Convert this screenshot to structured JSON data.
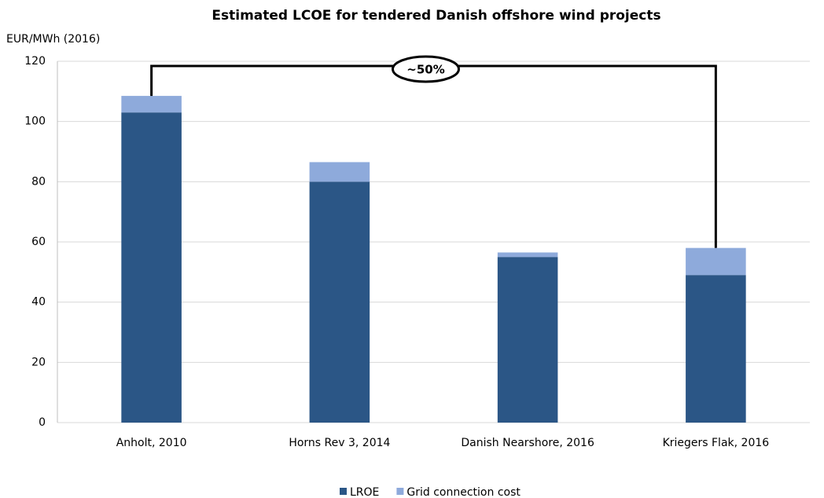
{
  "chart_data": {
    "type": "stacked_bar",
    "title": "Estimated LCOE for tendered Danish offshore wind projects",
    "y_label": "EUR/MWh (2016)",
    "categories": [
      "Anholt, 2010",
      "Horns Rev 3, 2014",
      "Danish Nearshore, 2016",
      "Kriegers Flak, 2016"
    ],
    "series": [
      {
        "name": "LROE",
        "color": "#2b5686",
        "values": [
          103,
          80,
          55,
          49
        ]
      },
      {
        "name": "Grid connection cost",
        "color": "#8eaadb",
        "values": [
          5.5,
          6.5,
          1.5,
          9
        ]
      }
    ],
    "ylim": [
      0,
      120
    ],
    "yticks": [
      0,
      20,
      40,
      60,
      80,
      100,
      120
    ],
    "grid": true,
    "legend": "bottom",
    "annotation": "~50%"
  }
}
